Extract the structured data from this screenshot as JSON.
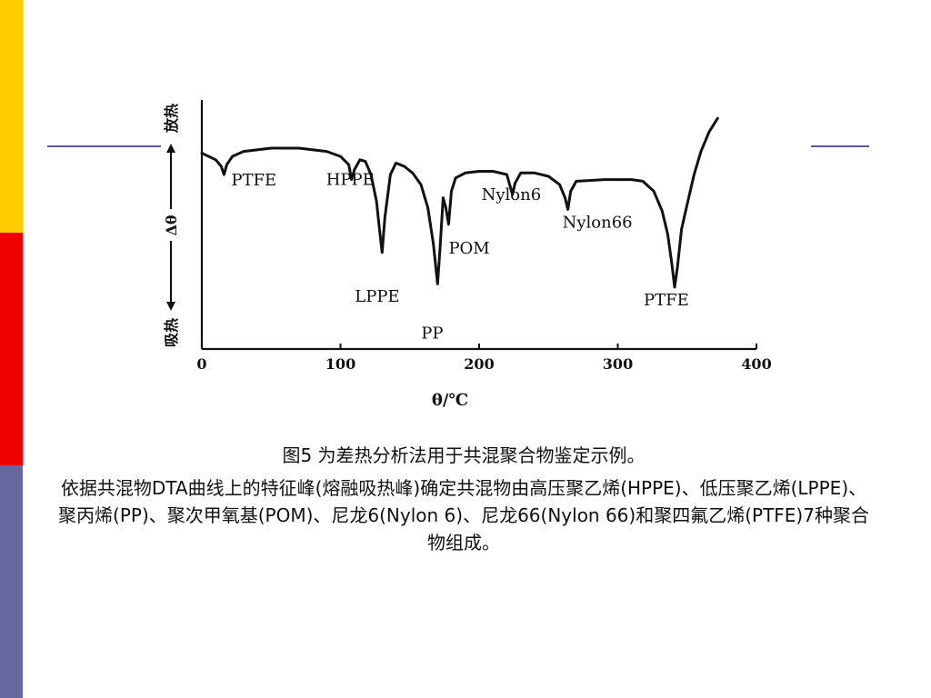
{
  "theme": {
    "bar_colors": [
      "#ffcc00",
      "#ee0000",
      "#6666a0"
    ],
    "rule_color": "#5a5aa0"
  },
  "chart_data": {
    "type": "line",
    "title": "",
    "xlabel": "θ/℃",
    "ylabel": "Δθ",
    "y_top_label": "放热",
    "y_bottom_label": "吸热",
    "xlim": [
      0,
      400
    ],
    "xticks": [
      0,
      100,
      200,
      300,
      400
    ],
    "x_tick_labels": [
      "0",
      "100",
      "200",
      "300",
      "400"
    ],
    "grid": false,
    "y_units": "relative (0 = baseline top of curve region, 1 = deepest)",
    "curve": [
      [
        0,
        0.03
      ],
      [
        10,
        0.07
      ],
      [
        14,
        0.11
      ],
      [
        16,
        0.16
      ],
      [
        18,
        0.1
      ],
      [
        22,
        0.05
      ],
      [
        30,
        0.02
      ],
      [
        50,
        0.0
      ],
      [
        70,
        0.0
      ],
      [
        90,
        0.02
      ],
      [
        100,
        0.05
      ],
      [
        106,
        0.1
      ],
      [
        108,
        0.19
      ],
      [
        110,
        0.13
      ],
      [
        114,
        0.07
      ],
      [
        118,
        0.08
      ],
      [
        122,
        0.16
      ],
      [
        126,
        0.32
      ],
      [
        128,
        0.48
      ],
      [
        130,
        0.63
      ],
      [
        132,
        0.42
      ],
      [
        136,
        0.16
      ],
      [
        140,
        0.09
      ],
      [
        146,
        0.11
      ],
      [
        152,
        0.15
      ],
      [
        158,
        0.22
      ],
      [
        163,
        0.36
      ],
      [
        167,
        0.58
      ],
      [
        170,
        0.82
      ],
      [
        172,
        0.58
      ],
      [
        174,
        0.3
      ],
      [
        176,
        0.36
      ],
      [
        178,
        0.46
      ],
      [
        180,
        0.26
      ],
      [
        183,
        0.18
      ],
      [
        190,
        0.15
      ],
      [
        200,
        0.14
      ],
      [
        210,
        0.14
      ],
      [
        220,
        0.16
      ],
      [
        224,
        0.28
      ],
      [
        226,
        0.21
      ],
      [
        230,
        0.15
      ],
      [
        240,
        0.15
      ],
      [
        250,
        0.17
      ],
      [
        258,
        0.22
      ],
      [
        262,
        0.3
      ],
      [
        264,
        0.37
      ],
      [
        266,
        0.26
      ],
      [
        270,
        0.2
      ],
      [
        290,
        0.19
      ],
      [
        310,
        0.19
      ],
      [
        318,
        0.2
      ],
      [
        326,
        0.26
      ],
      [
        332,
        0.38
      ],
      [
        336,
        0.52
      ],
      [
        339,
        0.7
      ],
      [
        341,
        0.84
      ],
      [
        343,
        0.72
      ],
      [
        346,
        0.49
      ],
      [
        350,
        0.34
      ],
      [
        355,
        0.16
      ],
      [
        360,
        0.02
      ],
      [
        366,
        -0.1
      ],
      [
        372,
        -0.18
      ]
    ],
    "annotations": [
      {
        "text": "PTFE",
        "x": 16
      },
      {
        "text": "HPPE",
        "x": 108
      },
      {
        "text": "LPPE",
        "x": 130
      },
      {
        "text": "PP",
        "x": 170
      },
      {
        "text": "POM",
        "x": 178
      },
      {
        "text": "Nylon6",
        "x": 224
      },
      {
        "text": "Nylon66",
        "x": 264
      },
      {
        "text": "PTFE",
        "x": 341
      }
    ]
  },
  "caption": {
    "title": "图5  为差热分析法用于共混聚合物鉴定示例。",
    "body": "依据共混物DTA曲线上的特征峰(熔融吸热峰)确定共混物由高压聚乙烯(HPPE)、低压聚乙烯(LPPE)、聚丙烯(PP)、聚次甲氧基(POM)、尼龙6(Nylon 6)、尼龙66(Nylon 66)和聚四氟乙烯(PTFE)7种聚合物组成。"
  }
}
